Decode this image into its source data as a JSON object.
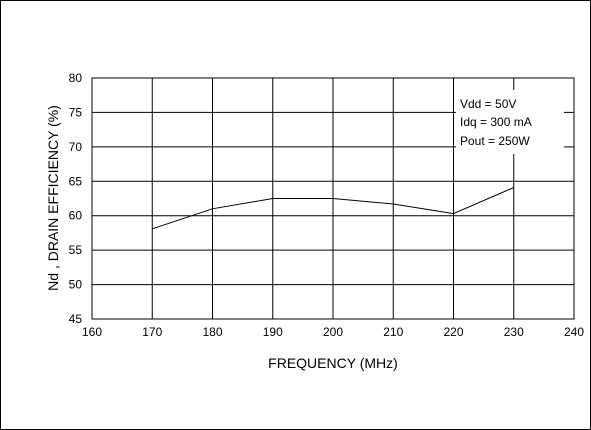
{
  "chart_data": {
    "type": "line",
    "title": "",
    "xlabel": "FREQUENCY (MHz)",
    "ylabel": "Nd , DRAIN EFFICIENCY (%)",
    "xlim": [
      160,
      240
    ],
    "ylim": [
      45,
      80
    ],
    "x_ticks": [
      "160",
      "170",
      "180",
      "190",
      "200",
      "210",
      "220",
      "230",
      "240"
    ],
    "y_ticks": [
      "45",
      "50",
      "55",
      "60",
      "65",
      "70",
      "75",
      "80"
    ],
    "grid": true,
    "legend": "none",
    "series": [
      {
        "x": [
          170,
          180,
          190,
          200,
          210,
          220,
          230
        ],
        "y": [
          58.1,
          61.0,
          62.5,
          62.5,
          61.7,
          60.3,
          64.1
        ]
      }
    ],
    "annotations": [
      "Vdd = 50V",
      "Idq = 300 mA",
      "Pout = 250W"
    ],
    "line_color": "#000000"
  }
}
